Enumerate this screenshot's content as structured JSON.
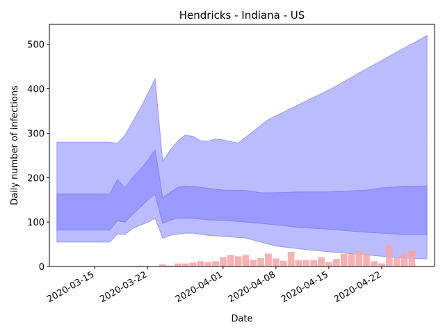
{
  "chart_data": {
    "type": "area",
    "title": "Hendricks - Indiana - US",
    "xlabel": "Date",
    "ylabel": "Daily number of infections",
    "x_start": "2020-03-10",
    "x_end": "2020-04-28",
    "xlim": [
      "2020-03-09",
      "2020-04-29"
    ],
    "ylim": [
      0,
      545
    ],
    "x_ticks": [
      "2020-03-15",
      "2020-03-22",
      "2020-04-01",
      "2020-04-08",
      "2020-04-15",
      "2020-04-22"
    ],
    "y_ticks": [
      0,
      100,
      200,
      300,
      400,
      500
    ],
    "grid": false,
    "colors": {
      "outer_band": "#bbbbff",
      "inner_band": "#9999ff",
      "bars": "#f4a6a6",
      "bars_overlap": "#cc7799"
    },
    "bands": {
      "outer_upper": [
        {
          "x": "2020-03-10",
          "y": 280
        },
        {
          "x": "2020-03-15",
          "y": 280
        },
        {
          "x": "2020-03-16",
          "y": 280
        },
        {
          "x": "2020-03-17",
          "y": 280
        },
        {
          "x": "2020-03-18",
          "y": 277
        },
        {
          "x": "2020-03-19",
          "y": 295
        },
        {
          "x": "2020-03-20",
          "y": 325
        },
        {
          "x": "2020-03-21",
          "y": 355
        },
        {
          "x": "2020-03-22",
          "y": 388
        },
        {
          "x": "2020-03-23",
          "y": 422
        },
        {
          "x": "2020-03-24",
          "y": 237
        },
        {
          "x": "2020-03-25",
          "y": 262
        },
        {
          "x": "2020-03-26",
          "y": 282
        },
        {
          "x": "2020-03-27",
          "y": 296
        },
        {
          "x": "2020-03-28",
          "y": 293
        },
        {
          "x": "2020-03-29",
          "y": 283
        },
        {
          "x": "2020-03-30",
          "y": 282
        },
        {
          "x": "2020-03-31",
          "y": 287
        },
        {
          "x": "2020-04-01",
          "y": 285
        },
        {
          "x": "2020-04-02",
          "y": 281
        },
        {
          "x": "2020-04-03",
          "y": 278
        },
        {
          "x": "2020-04-07",
          "y": 331
        },
        {
          "x": "2020-04-15",
          "y": 397
        },
        {
          "x": "2020-04-20",
          "y": 445
        },
        {
          "x": "2020-04-28",
          "y": 520
        }
      ],
      "inner_upper": [
        {
          "x": "2020-03-10",
          "y": 163
        },
        {
          "x": "2020-03-15",
          "y": 163
        },
        {
          "x": "2020-03-16",
          "y": 163
        },
        {
          "x": "2020-03-17",
          "y": 163
        },
        {
          "x": "2020-03-18",
          "y": 196
        },
        {
          "x": "2020-03-19",
          "y": 177
        },
        {
          "x": "2020-03-20",
          "y": 200
        },
        {
          "x": "2020-03-21",
          "y": 218
        },
        {
          "x": "2020-03-22",
          "y": 238
        },
        {
          "x": "2020-03-23",
          "y": 263
        },
        {
          "x": "2020-03-24",
          "y": 155
        },
        {
          "x": "2020-03-25",
          "y": 167
        },
        {
          "x": "2020-03-26",
          "y": 178
        },
        {
          "x": "2020-03-27",
          "y": 181
        },
        {
          "x": "2020-03-28",
          "y": 180
        },
        {
          "x": "2020-03-30",
          "y": 176
        },
        {
          "x": "2020-04-01",
          "y": 172
        },
        {
          "x": "2020-04-04",
          "y": 171
        },
        {
          "x": "2020-04-06",
          "y": 166
        },
        {
          "x": "2020-04-08",
          "y": 166
        },
        {
          "x": "2020-04-11",
          "y": 168
        },
        {
          "x": "2020-04-15",
          "y": 168
        },
        {
          "x": "2020-04-20",
          "y": 172
        },
        {
          "x": "2020-04-22",
          "y": 177
        },
        {
          "x": "2020-04-25",
          "y": 180
        },
        {
          "x": "2020-04-28",
          "y": 181
        }
      ],
      "inner_lower": [
        {
          "x": "2020-03-10",
          "y": 82
        },
        {
          "x": "2020-03-15",
          "y": 82
        },
        {
          "x": "2020-03-16",
          "y": 82
        },
        {
          "x": "2020-03-17",
          "y": 82
        },
        {
          "x": "2020-03-18",
          "y": 103
        },
        {
          "x": "2020-03-19",
          "y": 100
        },
        {
          "x": "2020-03-20",
          "y": 117
        },
        {
          "x": "2020-03-21",
          "y": 133
        },
        {
          "x": "2020-03-22",
          "y": 150
        },
        {
          "x": "2020-03-23",
          "y": 163
        },
        {
          "x": "2020-03-24",
          "y": 97
        },
        {
          "x": "2020-03-25",
          "y": 104
        },
        {
          "x": "2020-03-26",
          "y": 109
        },
        {
          "x": "2020-03-27",
          "y": 109
        },
        {
          "x": "2020-03-28",
          "y": 109
        },
        {
          "x": "2020-03-30",
          "y": 105
        },
        {
          "x": "2020-04-01",
          "y": 104
        },
        {
          "x": "2020-04-04",
          "y": 100
        },
        {
          "x": "2020-04-08",
          "y": 94
        },
        {
          "x": "2020-04-11",
          "y": 88
        },
        {
          "x": "2020-04-15",
          "y": 84
        },
        {
          "x": "2020-04-20",
          "y": 77
        },
        {
          "x": "2020-04-25",
          "y": 72
        },
        {
          "x": "2020-04-28",
          "y": 72
        }
      ],
      "outer_lower": [
        {
          "x": "2020-03-10",
          "y": 55
        },
        {
          "x": "2020-03-15",
          "y": 55
        },
        {
          "x": "2020-03-16",
          "y": 55
        },
        {
          "x": "2020-03-17",
          "y": 55
        },
        {
          "x": "2020-03-18",
          "y": 73
        },
        {
          "x": "2020-03-19",
          "y": 72
        },
        {
          "x": "2020-03-20",
          "y": 85
        },
        {
          "x": "2020-03-21",
          "y": 93
        },
        {
          "x": "2020-03-22",
          "y": 99
        },
        {
          "x": "2020-03-23",
          "y": 109
        },
        {
          "x": "2020-03-24",
          "y": 64
        },
        {
          "x": "2020-03-25",
          "y": 70
        },
        {
          "x": "2020-03-26",
          "y": 73
        },
        {
          "x": "2020-03-27",
          "y": 75
        },
        {
          "x": "2020-03-28",
          "y": 75
        },
        {
          "x": "2020-03-30",
          "y": 70
        },
        {
          "x": "2020-04-01",
          "y": 68
        },
        {
          "x": "2020-04-04",
          "y": 64
        },
        {
          "x": "2020-04-08",
          "y": 46
        },
        {
          "x": "2020-04-12",
          "y": 38
        },
        {
          "x": "2020-04-15",
          "y": 33
        },
        {
          "x": "2020-04-20",
          "y": 26
        },
        {
          "x": "2020-04-25",
          "y": 19
        },
        {
          "x": "2020-04-28",
          "y": 17
        }
      ]
    },
    "bars": [
      {
        "x": "2020-03-20",
        "y": 1
      },
      {
        "x": "2020-03-21",
        "y": 2
      },
      {
        "x": "2020-03-22",
        "y": 1
      },
      {
        "x": "2020-03-24",
        "y": 5
      },
      {
        "x": "2020-03-25",
        "y": 2
      },
      {
        "x": "2020-03-26",
        "y": 7
      },
      {
        "x": "2020-03-27",
        "y": 7
      },
      {
        "x": "2020-03-28",
        "y": 9
      },
      {
        "x": "2020-03-29",
        "y": 12
      },
      {
        "x": "2020-03-30",
        "y": 10
      },
      {
        "x": "2020-03-31",
        "y": 12
      },
      {
        "x": "2020-04-01",
        "y": 21
      },
      {
        "x": "2020-04-02",
        "y": 26
      },
      {
        "x": "2020-04-03",
        "y": 23
      },
      {
        "x": "2020-04-04",
        "y": 26
      },
      {
        "x": "2020-04-05",
        "y": 15
      },
      {
        "x": "2020-04-06",
        "y": 19
      },
      {
        "x": "2020-04-07",
        "y": 29
      },
      {
        "x": "2020-04-08",
        "y": 18
      },
      {
        "x": "2020-04-09",
        "y": 13
      },
      {
        "x": "2020-04-10",
        "y": 33
      },
      {
        "x": "2020-04-11",
        "y": 14
      },
      {
        "x": "2020-04-12",
        "y": 14
      },
      {
        "x": "2020-04-13",
        "y": 14
      },
      {
        "x": "2020-04-14",
        "y": 21
      },
      {
        "x": "2020-04-15",
        "y": 10
      },
      {
        "x": "2020-04-16",
        "y": 17
      },
      {
        "x": "2020-04-17",
        "y": 28
      },
      {
        "x": "2020-04-18",
        "y": 28
      },
      {
        "x": "2020-04-19",
        "y": 36
      },
      {
        "x": "2020-04-20",
        "y": 29
      },
      {
        "x": "2020-04-21",
        "y": 12
      },
      {
        "x": "2020-04-22",
        "y": 7
      },
      {
        "x": "2020-04-23",
        "y": 48
      },
      {
        "x": "2020-04-24",
        "y": 20
      },
      {
        "x": "2020-04-25",
        "y": 29
      },
      {
        "x": "2020-04-26",
        "y": 33
      }
    ]
  }
}
